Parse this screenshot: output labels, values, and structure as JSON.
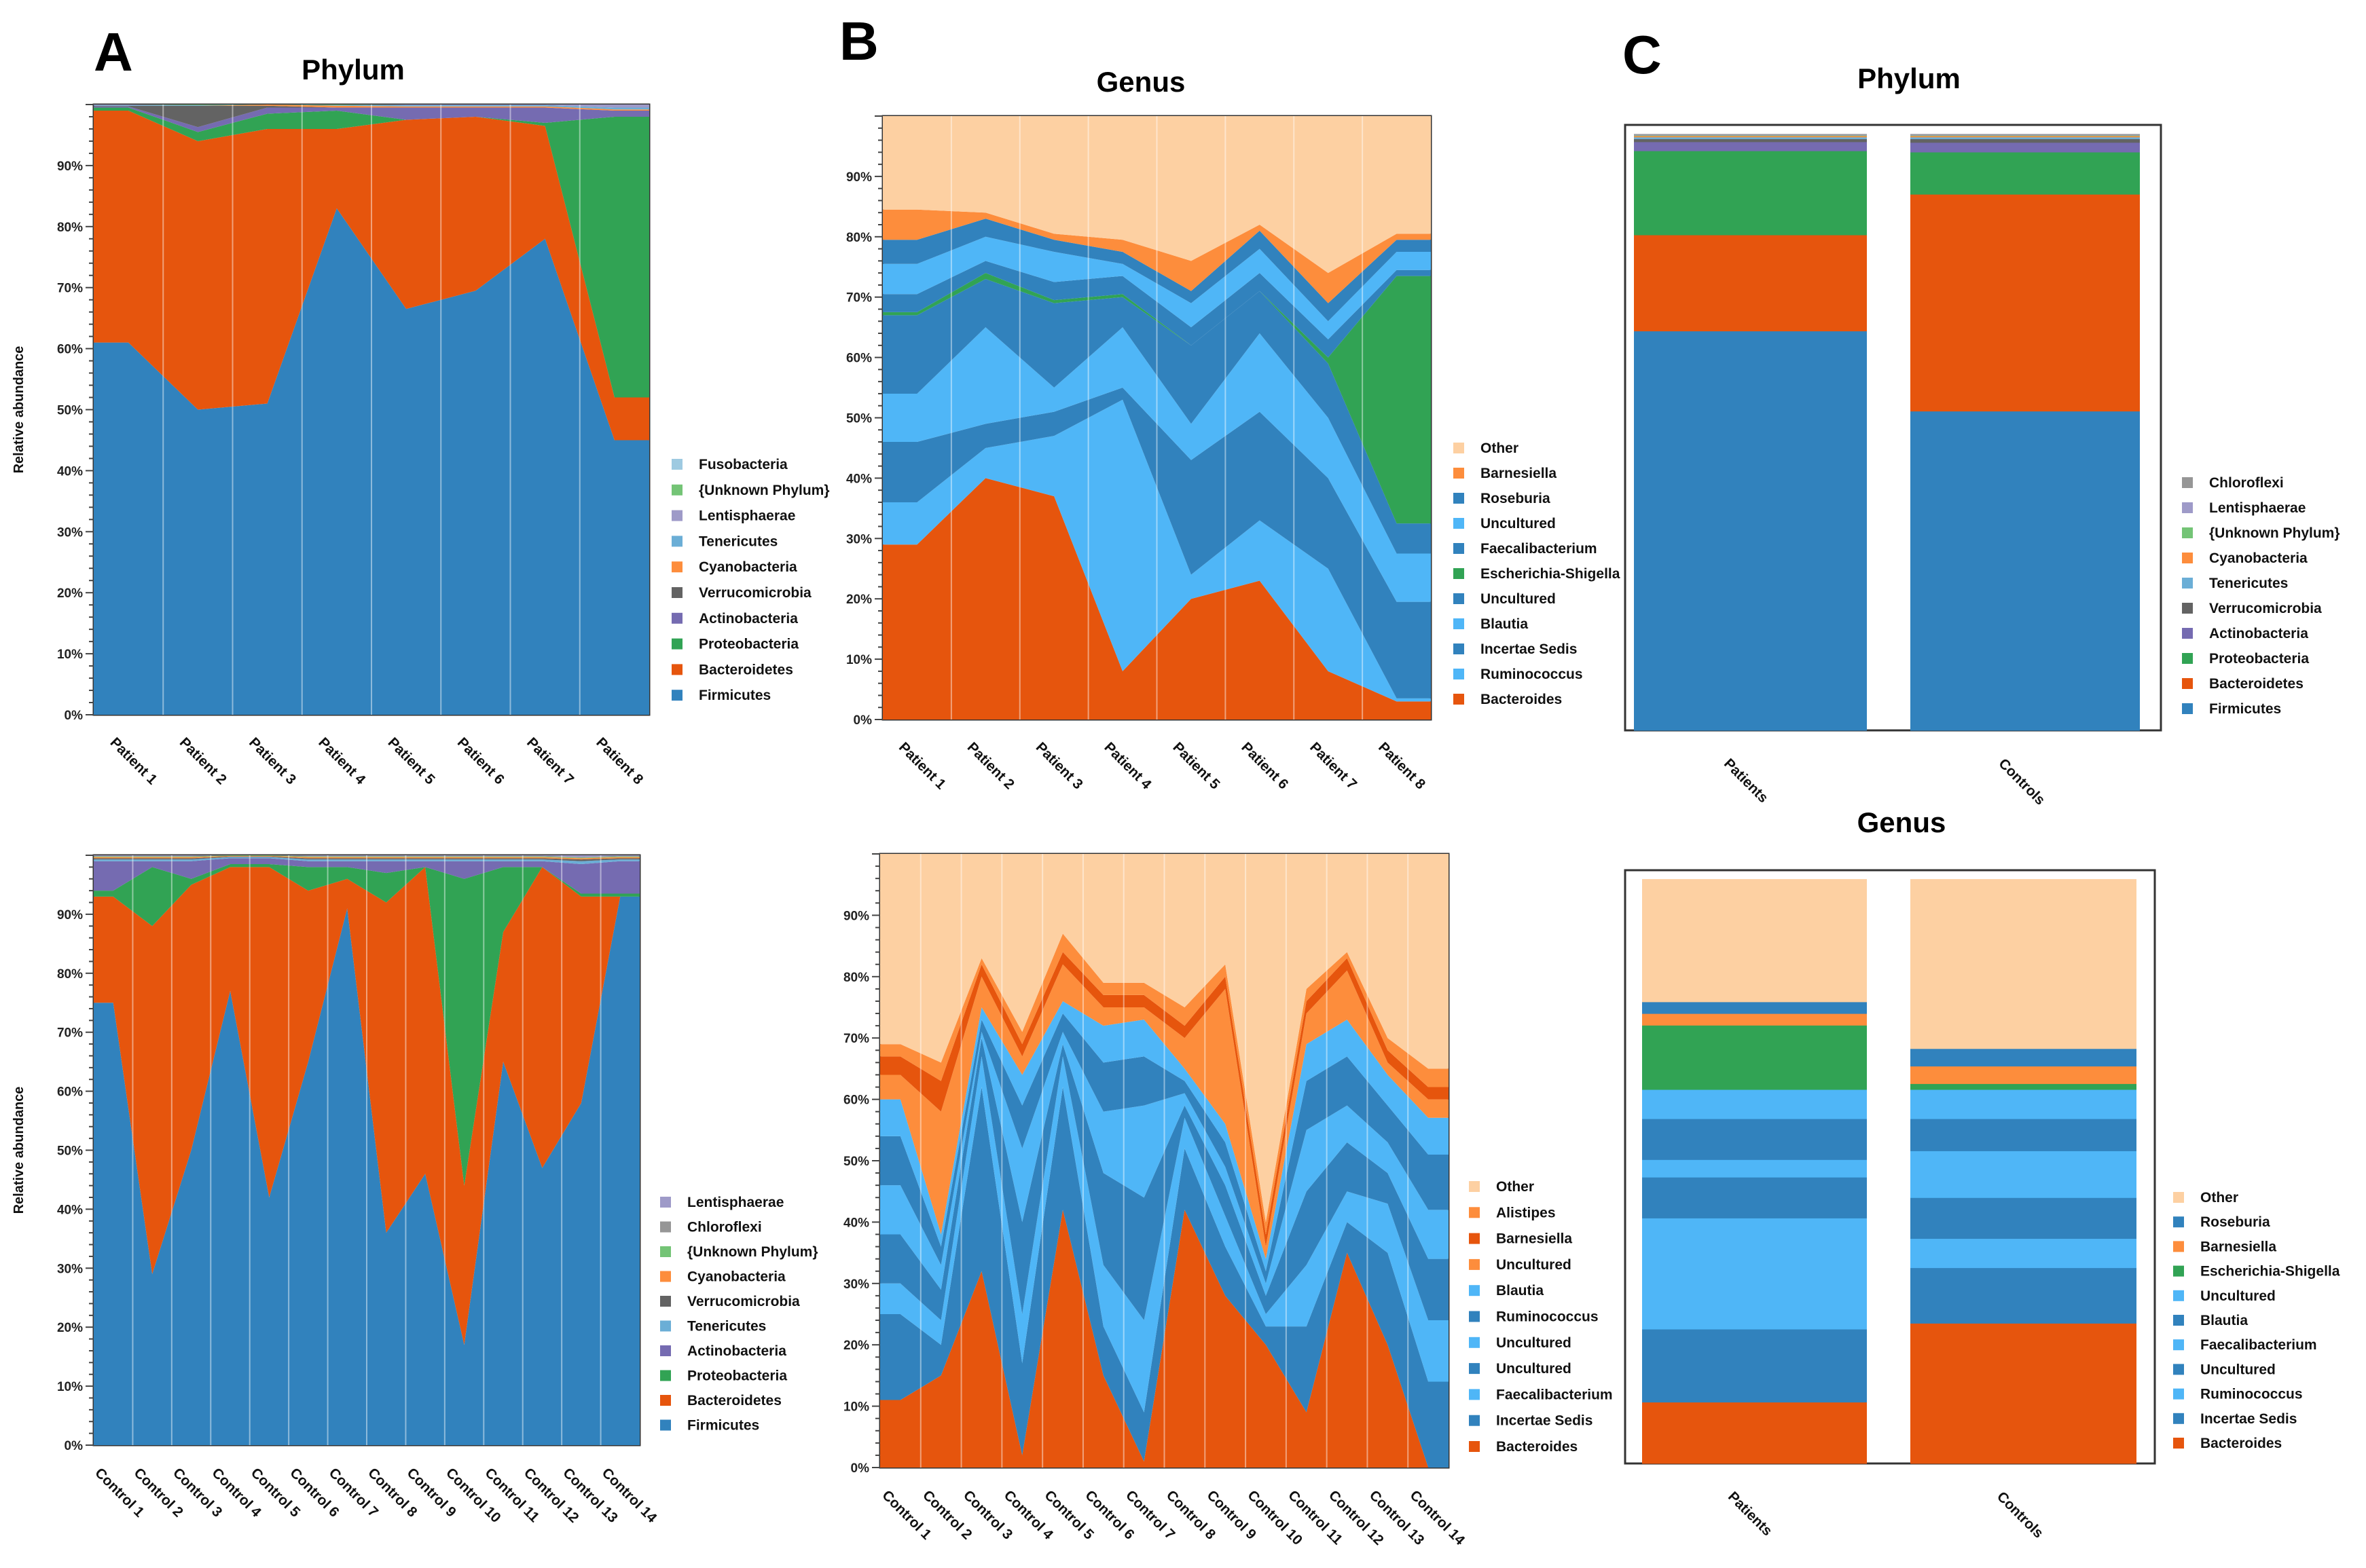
{
  "panels": {
    "A": "A",
    "B": "B",
    "C": "C"
  },
  "chart_data": [
    {
      "id": "A-top",
      "type": "area",
      "title": "Phylum",
      "ylabel": "Relative abundance",
      "ylim": [
        0,
        100
      ],
      "yticks": [
        "0%",
        "10%",
        "20%",
        "30%",
        "40%",
        "50%",
        "60%",
        "70%",
        "80%",
        "90%"
      ],
      "categories": [
        "Patient 1",
        "Patient 2",
        "Patient 3",
        "Patient 4",
        "Patient 5",
        "Patient 6",
        "Patient 7",
        "Patient 8"
      ],
      "series": [
        {
          "name": "Firmicutes",
          "color": "#3182bd",
          "values": [
            61,
            50,
            51,
            83,
            66.5,
            69.5,
            78,
            45
          ]
        },
        {
          "name": "Bacteroidetes",
          "color": "#e6550d",
          "values": [
            38,
            44,
            45,
            13,
            31,
            28.5,
            18.5,
            7
          ]
        },
        {
          "name": "Proteobacteria",
          "color": "#31a354",
          "values": [
            0.5,
            1.5,
            2.5,
            3,
            0,
            0,
            0.5,
            46
          ]
        },
        {
          "name": "Actinobacteria",
          "color": "#756bb1",
          "values": [
            0.2,
            0.8,
            1,
            0.5,
            2,
            1.5,
            2.5,
            1
          ]
        },
        {
          "name": "Verrucomicrobia",
          "color": "#636363",
          "values": [
            0.1,
            3.5,
            0.3,
            0,
            0,
            0,
            0,
            0
          ]
        },
        {
          "name": "Cyanobacteria",
          "color": "#fd8d3c",
          "values": [
            0,
            0,
            0.2,
            0.3,
            0.2,
            0.2,
            0.2,
            0.2
          ]
        },
        {
          "name": "Tenericutes",
          "color": "#6baed6",
          "values": [
            0.1,
            0.1,
            0,
            0.1,
            0.2,
            0.2,
            0.2,
            0.3
          ]
        },
        {
          "name": "Lentisphaerae",
          "color": "#9e9ac8",
          "values": [
            0.1,
            0,
            0,
            0,
            0.1,
            0.1,
            0.1,
            0.5
          ]
        },
        {
          "name": "{Unknown Phylum}",
          "color": "#74c476",
          "values": [
            0,
            0.1,
            0,
            0.1,
            0,
            0,
            0,
            0
          ]
        },
        {
          "name": "Fusobacteria",
          "color": "#9ecae1",
          "values": [
            0,
            0,
            0,
            0,
            0,
            0,
            0,
            0
          ]
        }
      ]
    },
    {
      "id": "A-bottom",
      "type": "area",
      "title": "",
      "ylabel": "Relative abundance",
      "ylim": [
        0,
        100
      ],
      "yticks": [
        "0%",
        "10%",
        "20%",
        "30%",
        "40%",
        "50%",
        "60%",
        "70%",
        "80%",
        "90%"
      ],
      "categories": [
        "Control 1",
        "Control 2",
        "Control 3",
        "Control 4",
        "Control 5",
        "Control 6",
        "Control 7",
        "Control 8",
        "Control 9",
        "Control 10",
        "Control 11",
        "Control 12",
        "Control 13",
        "Control 14"
      ],
      "series": [
        {
          "name": "Firmicutes",
          "color": "#3182bd",
          "values": [
            75,
            29,
            50,
            77,
            42,
            65,
            91,
            36,
            46,
            17,
            65,
            47,
            58,
            93
          ]
        },
        {
          "name": "Bacteroidetes",
          "color": "#e6550d",
          "values": [
            18,
            59,
            45,
            21,
            56,
            29,
            5,
            56,
            52,
            27,
            22,
            51,
            35,
            0
          ]
        },
        {
          "name": "Proteobacteria",
          "color": "#31a354",
          "values": [
            1,
            10,
            1,
            0.5,
            0.5,
            4,
            2,
            5,
            0,
            52,
            11,
            0,
            0.5,
            0.5
          ]
        },
        {
          "name": "Actinobacteria",
          "color": "#756bb1",
          "values": [
            5,
            1,
            3,
            1,
            1,
            1,
            1,
            2,
            1,
            3,
            1,
            1,
            5,
            5.5
          ]
        },
        {
          "name": "Tenericutes",
          "color": "#6baed6",
          "values": [
            0.3,
            0.3,
            0.3,
            0.2,
            0.2,
            0.3,
            0.3,
            0.3,
            0.3,
            0.3,
            0.3,
            0.3,
            0.5,
            0.3
          ]
        },
        {
          "name": "Verrucomicrobia",
          "color": "#636363",
          "values": [
            0.2,
            0.2,
            0.2,
            0.1,
            0.1,
            0.2,
            0.2,
            0.2,
            0.2,
            0.2,
            0.2,
            0.2,
            0.3,
            0.2
          ]
        },
        {
          "name": "Cyanobacteria",
          "color": "#fd8d3c",
          "values": [
            0.2,
            0.2,
            0.2,
            0.1,
            0.1,
            0.2,
            0.2,
            0.2,
            0.2,
            0.2,
            0.2,
            0.2,
            0.2,
            0.2
          ]
        },
        {
          "name": "{Unknown Phylum}",
          "color": "#74c476",
          "values": [
            0.1,
            0.1,
            0.1,
            0.1,
            0.1,
            0.1,
            0.1,
            0.1,
            0.1,
            0.1,
            0.1,
            0.1,
            0.1,
            0.1
          ]
        },
        {
          "name": "Chloroflexi",
          "color": "#969696",
          "values": [
            0.1,
            0.1,
            0.1,
            0,
            0,
            0.1,
            0.1,
            0.1,
            0.1,
            0.1,
            0.1,
            0.1,
            0.1,
            0.1
          ]
        },
        {
          "name": "Lentisphaerae",
          "color": "#9e9ac8",
          "values": [
            0.1,
            0.1,
            0.1,
            0,
            0,
            0.1,
            0.1,
            0.1,
            0.1,
            0.1,
            0.1,
            0.1,
            0.3,
            0.1
          ]
        }
      ]
    },
    {
      "id": "B-top",
      "type": "area",
      "title": "Genus",
      "ylabel": "",
      "ylim": [
        0,
        100
      ],
      "yticks": [
        "0%",
        "10%",
        "20%",
        "30%",
        "40%",
        "50%",
        "60%",
        "70%",
        "80%",
        "90%"
      ],
      "categories": [
        "Patient 1",
        "Patient 2",
        "Patient 3",
        "Patient 4",
        "Patient 5",
        "Patient 6",
        "Patient 7",
        "Patient 8"
      ],
      "series": [
        {
          "name": "Bacteroides",
          "color": "#e6550d",
          "values": [
            29,
            40,
            37,
            8,
            20,
            23,
            8,
            3
          ]
        },
        {
          "name": "Ruminococcus",
          "color": "#4fb6f7",
          "values": [
            7,
            5,
            10,
            45,
            4,
            10,
            17,
            0.5
          ]
        },
        {
          "name": "Incertae Sedis",
          "color": "#3182bd",
          "values": [
            10,
            4,
            4,
            2,
            19,
            18,
            15,
            16
          ]
        },
        {
          "name": "Blautia",
          "color": "#4fb6f7",
          "values": [
            8,
            16,
            4,
            10,
            6,
            13,
            10,
            8
          ]
        },
        {
          "name": "Uncultured",
          "color": "#3182bd",
          "values": [
            13,
            8,
            14,
            5,
            13,
            7,
            9,
            5
          ]
        },
        {
          "name": "Escherichia-Shigella",
          "color": "#31a354",
          "values": [
            0.5,
            1,
            0.5,
            0.5,
            0,
            0,
            1,
            41
          ]
        },
        {
          "name": "Faecalibacterium",
          "color": "#3182bd",
          "values": [
            3,
            2,
            3,
            3,
            3,
            3,
            3,
            1
          ]
        },
        {
          "name": "Uncultured",
          "color": "#4fb6f7",
          "values": [
            5,
            4,
            5,
            2,
            4,
            4,
            3,
            3
          ]
        },
        {
          "name": "Roseburia",
          "color": "#3182bd",
          "values": [
            4,
            3,
            2,
            2,
            2,
            3,
            3,
            2
          ]
        },
        {
          "name": "Barnesiella",
          "color": "#fd8d3c",
          "values": [
            5,
            1,
            1,
            2,
            5,
            1,
            5,
            1
          ]
        },
        {
          "name": "Other",
          "color": "#fdd0a2",
          "values": [
            15.5,
            16,
            19.5,
            20.5,
            24,
            18,
            26,
            19.5
          ]
        }
      ]
    },
    {
      "id": "B-bottom",
      "type": "area",
      "title": "",
      "ylabel": "",
      "ylim": [
        0,
        100
      ],
      "yticks": [
        "0%",
        "10%",
        "20%",
        "30%",
        "40%",
        "50%",
        "60%",
        "70%",
        "80%",
        "90%"
      ],
      "categories": [
        "Control 1",
        "Control 2",
        "Control 3",
        "Control 4",
        "Control 5",
        "Control 6",
        "Control 7",
        "Control 8",
        "Control 9",
        "Control 10",
        "Control 11",
        "Control 12",
        "Control 13",
        "Control 14"
      ],
      "series": [
        {
          "name": "Bacteroides",
          "color": "#e6550d",
          "values": [
            11,
            15,
            32,
            2,
            42,
            15,
            1,
            42,
            28,
            20,
            9,
            35,
            20,
            0
          ]
        },
        {
          "name": "Incertae Sedis",
          "color": "#3182bd",
          "values": [
            14,
            5,
            30,
            15,
            20,
            8,
            8,
            10,
            8,
            3,
            14,
            5,
            15,
            14
          ]
        },
        {
          "name": "Faecalibacterium",
          "color": "#4fb6f7",
          "values": [
            5,
            4,
            5,
            8,
            5,
            10,
            15,
            5,
            5,
            2,
            10,
            5,
            8,
            10
          ]
        },
        {
          "name": "Uncultured",
          "color": "#3182bd",
          "values": [
            8,
            5,
            3,
            15,
            2,
            15,
            20,
            2,
            5,
            3,
            12,
            8,
            5,
            10
          ]
        },
        {
          "name": "Uncultured",
          "color": "#4fb6f7",
          "values": [
            8,
            4,
            1,
            12,
            2,
            10,
            15,
            2,
            3,
            2,
            10,
            6,
            5,
            8
          ]
        },
        {
          "name": "Ruminococcus",
          "color": "#3182bd",
          "values": [
            8,
            3,
            2,
            7,
            3,
            8,
            8,
            2,
            4,
            2,
            8,
            8,
            6,
            9
          ]
        },
        {
          "name": "Blautia",
          "color": "#4fb6f7",
          "values": [
            6,
            2,
            2,
            5,
            2,
            6,
            6,
            2,
            3,
            2,
            6,
            6,
            5,
            6
          ]
        },
        {
          "name": "Uncultured",
          "color": "#fd8d3c",
          "values": [
            4,
            20,
            5,
            3,
            6,
            3,
            2,
            5,
            22,
            2,
            5,
            8,
            2,
            3
          ]
        },
        {
          "name": "Barnesiella",
          "color": "#e6550d",
          "values": [
            3,
            5,
            2,
            2,
            2,
            2,
            2,
            2,
            2,
            2,
            2,
            2,
            2,
            2
          ]
        },
        {
          "name": "Alistipes",
          "color": "#fd8d3c",
          "values": [
            2,
            3,
            1,
            2,
            3,
            2,
            2,
            3,
            2,
            2,
            2,
            1,
            2,
            3
          ]
        },
        {
          "name": "Other",
          "color": "#fdd0a2",
          "values": [
            31,
            34,
            17,
            29,
            13,
            21,
            21,
            25,
            18,
            60,
            22,
            16,
            30,
            35
          ]
        }
      ]
    },
    {
      "id": "C-top",
      "type": "bar",
      "title": "Phylum",
      "ylim": [
        0,
        100
      ],
      "categories": [
        "Patients",
        "Controls"
      ],
      "series": [
        {
          "name": "Firmicutes",
          "color": "#3182bd",
          "values": [
            66.5,
            53
          ]
        },
        {
          "name": "Bacteroidetes",
          "color": "#e6550d",
          "values": [
            16,
            36
          ]
        },
        {
          "name": "Proteobacteria",
          "color": "#31a354",
          "values": [
            14,
            7
          ]
        },
        {
          "name": "Actinobacteria",
          "color": "#756bb1",
          "values": [
            1.5,
            1.6
          ]
        },
        {
          "name": "Verrucomicrobia",
          "color": "#636363",
          "values": [
            0.5,
            0.6
          ]
        },
        {
          "name": "Tenericutes",
          "color": "#6baed6",
          "values": [
            0.3,
            0.3
          ]
        },
        {
          "name": "Cyanobacteria",
          "color": "#fd8d3c",
          "values": [
            0.2,
            0.2
          ]
        },
        {
          "name": "{Unknown Phylum}",
          "color": "#74c476",
          "values": [
            0.1,
            0.1
          ]
        },
        {
          "name": "Lentisphaerae",
          "color": "#9e9ac8",
          "values": [
            0.1,
            0.1
          ]
        },
        {
          "name": "Chloroflexi",
          "color": "#969696",
          "values": [
            0.1,
            0.1
          ]
        }
      ]
    },
    {
      "id": "C-bottom",
      "type": "bar",
      "title": "Genus",
      "ylim": [
        0,
        100
      ],
      "categories": [
        "Patients",
        "Controls"
      ],
      "series": [
        {
          "name": "Bacteroides",
          "color": "#e6550d",
          "values": [
            10.5,
            24
          ]
        },
        {
          "name": "Incertae Sedis",
          "color": "#3182bd",
          "values": [
            12.5,
            9.5
          ]
        },
        {
          "name": "Ruminococcus",
          "color": "#4fb6f7",
          "values": [
            19,
            5
          ]
        },
        {
          "name": "Uncultured",
          "color": "#3182bd",
          "values": [
            7,
            7
          ]
        },
        {
          "name": "Faecalibacterium",
          "color": "#4fb6f7",
          "values": [
            3,
            8
          ]
        },
        {
          "name": "Blautia",
          "color": "#3182bd",
          "values": [
            7,
            5.5
          ]
        },
        {
          "name": "Uncultured",
          "color": "#4fb6f7",
          "values": [
            5,
            5
          ]
        },
        {
          "name": "Escherichia-Shigella",
          "color": "#31a354",
          "values": [
            11,
            1
          ]
        },
        {
          "name": "Barnesiella",
          "color": "#fd8d3c",
          "values": [
            2,
            3
          ]
        },
        {
          "name": "Roseburia",
          "color": "#3182bd",
          "values": [
            2,
            3
          ]
        },
        {
          "name": "Other",
          "color": "#fdd0a2",
          "values": [
            21,
            29
          ]
        }
      ]
    }
  ]
}
